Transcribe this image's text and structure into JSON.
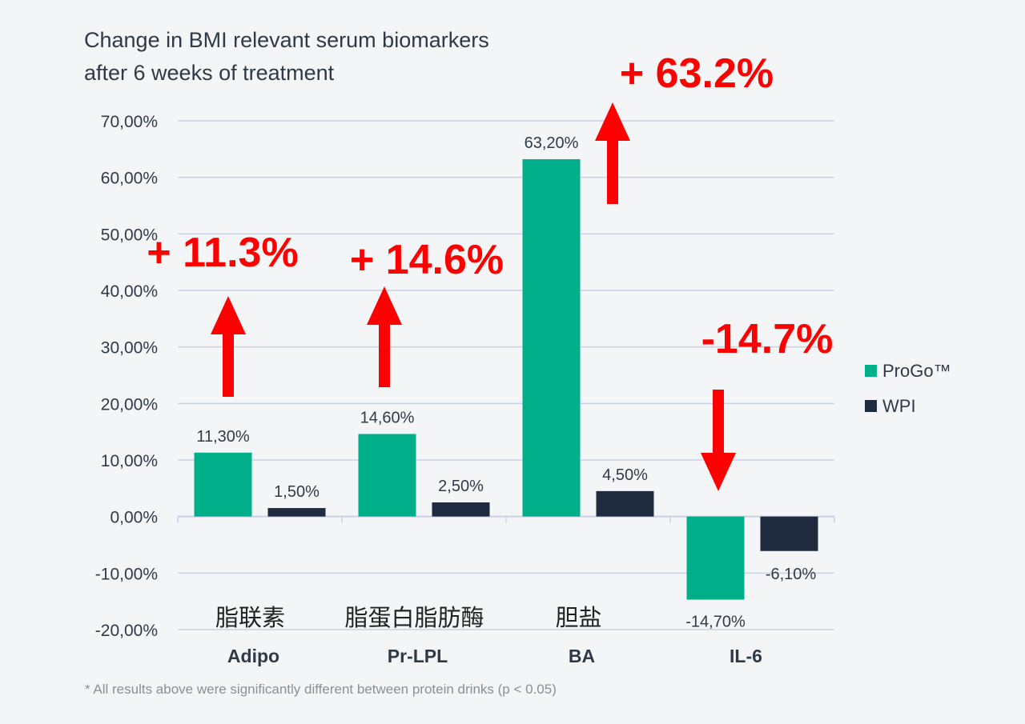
{
  "title": {
    "line1": "Change in BMI relevant serum biomarkers",
    "line2": "after 6 weeks of treatment"
  },
  "footnote": "* All results above were significantly different between protein drinks (p < 0.05)",
  "colors": {
    "progo": "#00ae8a",
    "wpi": "#1f2b3e",
    "grid": "#c9d1e6",
    "callout": "#ff0000"
  },
  "chart_data": {
    "type": "bar",
    "categories": [
      "Adipo",
      "Pr-LPL",
      "BA",
      "IL-6"
    ],
    "category_annotations": [
      "脂联素",
      "脂蛋白脂肪酶",
      "胆盐",
      ""
    ],
    "series": [
      {
        "name": "ProGo™",
        "values": [
          11.3,
          14.6,
          63.2,
          -14.7
        ],
        "labels": [
          "11,30%",
          "14,60%",
          "63,20%",
          "-14,70%"
        ]
      },
      {
        "name": "WPI",
        "values": [
          1.5,
          2.5,
          4.5,
          -6.1
        ],
        "labels": [
          "1,50%",
          "2,50%",
          "4,50%",
          "-6,10%"
        ]
      }
    ],
    "ylim": [
      -20,
      70
    ],
    "yticks": [
      "-20,00%",
      "-10,00%",
      "0,00%",
      "10,00%",
      "20,00%",
      "30,00%",
      "40,00%",
      "50,00%",
      "60,00%",
      "70,00%"
    ],
    "ytick_values": [
      -20,
      -10,
      0,
      10,
      20,
      30,
      40,
      50,
      60,
      70
    ],
    "grid": true,
    "legend": "right",
    "callouts": [
      {
        "category": "Adipo",
        "text": "+ 11.3%",
        "direction": "up"
      },
      {
        "category": "Pr-LPL",
        "text": "+ 14.6%",
        "direction": "up"
      },
      {
        "category": "BA",
        "text": "+ 63.2%",
        "direction": "up"
      },
      {
        "category": "IL-6",
        "text": "-14.7%",
        "direction": "down"
      }
    ]
  }
}
